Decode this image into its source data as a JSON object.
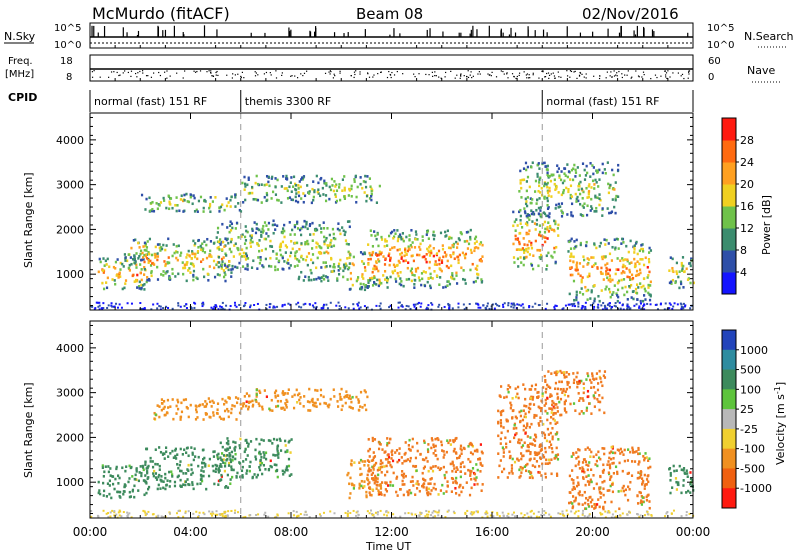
{
  "header": {
    "station": "McMurdo (fitACF)",
    "beam": "Beam 08",
    "date": "02/Nov/2016"
  },
  "status_panels": {
    "nsky_label": "N.Sky",
    "nsky_ticks": [
      "10^5",
      "10^0"
    ],
    "nsearch_label": "N.Search",
    "nsearch_ticks": [
      "10^5",
      "10^0"
    ],
    "freq_label_1": "Freq.",
    "freq_label_2": "[MHz]",
    "freq_ticks": [
      "18",
      "8"
    ],
    "nave_label": "Nave",
    "nave_ticks": [
      "60",
      "0"
    ],
    "cpid_label": "CPID",
    "modes": [
      {
        "label": "normal (fast) 151 RF",
        "start_hour": 0,
        "end_hour": 6
      },
      {
        "label": "themis 3300 RF",
        "start_hour": 6,
        "end_hour": 18
      },
      {
        "label": "normal (fast) 151 RF",
        "start_hour": 18,
        "end_hour": 24
      }
    ]
  },
  "chart_data": [
    {
      "type": "heatmap",
      "name": "power-panel",
      "ylabel": "Slant Range [km]",
      "yticks": [
        "1000",
        "2000",
        "3000",
        "4000"
      ],
      "ylim": [
        200,
        4600
      ],
      "colorbar_label": "Power [dB]",
      "colorbar_ticks": [
        "4",
        "8",
        "12",
        "16",
        "20",
        "24",
        "28"
      ],
      "colorbar_colors": [
        "#1414ff",
        "#2e4fa8",
        "#3b8c6e",
        "#6fc24a",
        "#f0d020",
        "#ffa020",
        "#ff6a10",
        "#ff1a10"
      ],
      "regions": [
        {
          "x": [
            0.3,
            2.3
          ],
          "y": [
            650,
            1400
          ],
          "level": 0.55
        },
        {
          "x": [
            1.2,
            2.3
          ],
          "y": [
            1300,
            1800
          ],
          "level": 0.4
        },
        {
          "x": [
            2.0,
            5.6
          ],
          "y": [
            850,
            1800
          ],
          "level": 0.45
        },
        {
          "x": [
            2.0,
            6.0
          ],
          "y": [
            2400,
            2800
          ],
          "level": 0.3
        },
        {
          "x": [
            5.0,
            8.0
          ],
          "y": [
            1100,
            2200
          ],
          "level": 0.3
        },
        {
          "x": [
            6.0,
            11.5
          ],
          "y": [
            2600,
            3200
          ],
          "level": 0.25
        },
        {
          "x": [
            8.0,
            10.3
          ],
          "y": [
            850,
            2200
          ],
          "level": 0.35
        },
        {
          "x": [
            10.3,
            11.5
          ],
          "y": [
            650,
            1500
          ],
          "level": 0.55
        },
        {
          "x": [
            11.0,
            15.6
          ],
          "y": [
            700,
            2000
          ],
          "level": 0.6
        },
        {
          "x": [
            16.8,
            18.6
          ],
          "y": [
            1100,
            2400
          ],
          "level": 0.6
        },
        {
          "x": [
            17.0,
            21.0
          ],
          "y": [
            2300,
            3500
          ],
          "level": 0.3
        },
        {
          "x": [
            19.0,
            22.3
          ],
          "y": [
            400,
            1800
          ],
          "level": 0.55
        },
        {
          "x": [
            23.0,
            24.0
          ],
          "y": [
            700,
            1400
          ],
          "level": 0.35
        }
      ]
    },
    {
      "type": "heatmap",
      "name": "velocity-panel",
      "ylabel": "Slant Range [km]",
      "yticks": [
        "1000",
        "2000",
        "3000",
        "4000"
      ],
      "ylim": [
        200,
        4600
      ],
      "xlabel": "Time UT",
      "xticks": [
        "00:00",
        "04:00",
        "08:00",
        "12:00",
        "16:00",
        "20:00",
        "00:00"
      ],
      "xlim": [
        0,
        24
      ],
      "colorbar_label": "Velocity [m s",
      "colorbar_label_sup": "-1",
      "colorbar_label_end": "]",
      "colorbar_ticks": [
        "1000",
        "500",
        "100",
        "25",
        "-25",
        "-100",
        "-500",
        "-1000"
      ],
      "colorbar_colors": [
        "#2244bb",
        "#2e8ca0",
        "#3c8a5c",
        "#5ec43c",
        "#b8b8b8",
        "#f0d030",
        "#f09020",
        "#f06010",
        "#ff1a10"
      ],
      "regions": [
        {
          "x": [
            0.3,
            2.3
          ],
          "y": [
            650,
            1400
          ],
          "color": "#3c8a5c"
        },
        {
          "x": [
            2.0,
            5.6
          ],
          "y": [
            850,
            1800
          ],
          "color": "#3c8a5c"
        },
        {
          "x": [
            2.5,
            6.0
          ],
          "y": [
            2400,
            2900
          ],
          "color": "#f09020"
        },
        {
          "x": [
            5.0,
            8.0
          ],
          "y": [
            1100,
            2000
          ],
          "color": "#3c8a5c"
        },
        {
          "x": [
            6.0,
            11.0
          ],
          "y": [
            2600,
            3100
          ],
          "color": "#f09020"
        },
        {
          "x": [
            10.2,
            11.6
          ],
          "y": [
            650,
            1500
          ],
          "color": "#f09020"
        },
        {
          "x": [
            11.0,
            15.6
          ],
          "y": [
            700,
            2000
          ],
          "color": "#f07a20"
        },
        {
          "x": [
            16.2,
            18.6
          ],
          "y": [
            1100,
            3200
          ],
          "color": "#f07a20"
        },
        {
          "x": [
            18.0,
            20.5
          ],
          "y": [
            2500,
            3500
          ],
          "color": "#f07a20"
        },
        {
          "x": [
            19.0,
            22.3
          ],
          "y": [
            400,
            1800
          ],
          "color": "#f07a20"
        },
        {
          "x": [
            23.0,
            24.0
          ],
          "y": [
            700,
            1400
          ],
          "color": "#3c8a5c"
        }
      ]
    }
  ]
}
